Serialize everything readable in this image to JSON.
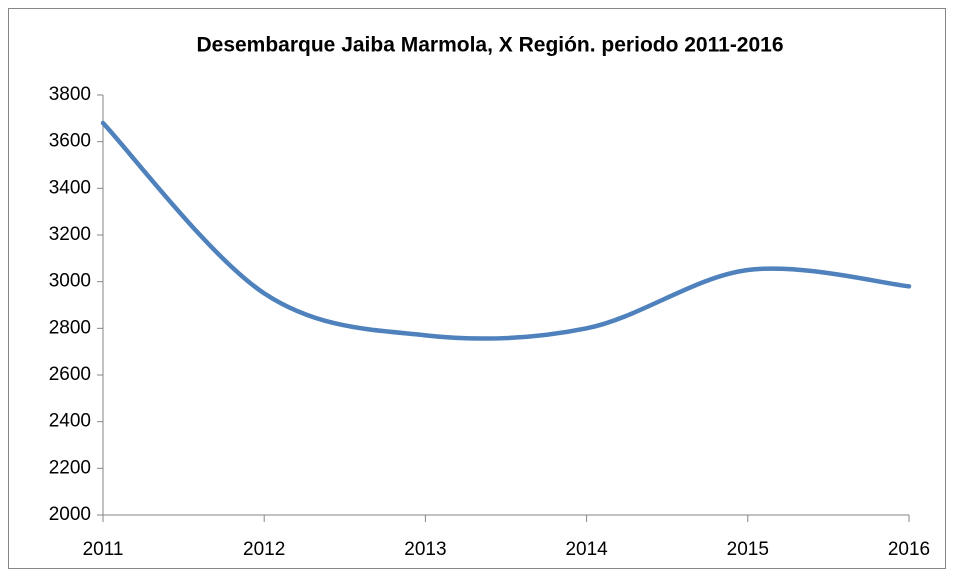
{
  "chart_data": {
    "type": "line",
    "title": "Desembarque Jaiba Marmola, X Región. periodo 2011-2016",
    "categories": [
      "2011",
      "2012",
      "2013",
      "2014",
      "2015",
      "2016"
    ],
    "series": [
      {
        "name": "Desembarque",
        "color": "#4f81bd",
        "values": [
          3680,
          2950,
          2770,
          2800,
          3050,
          2980
        ]
      }
    ],
    "ylim": [
      2000,
      3800
    ],
    "yticks": [
      2000,
      2200,
      2400,
      2600,
      2800,
      3000,
      3200,
      3400,
      3600,
      3800
    ],
    "smooth": true
  }
}
